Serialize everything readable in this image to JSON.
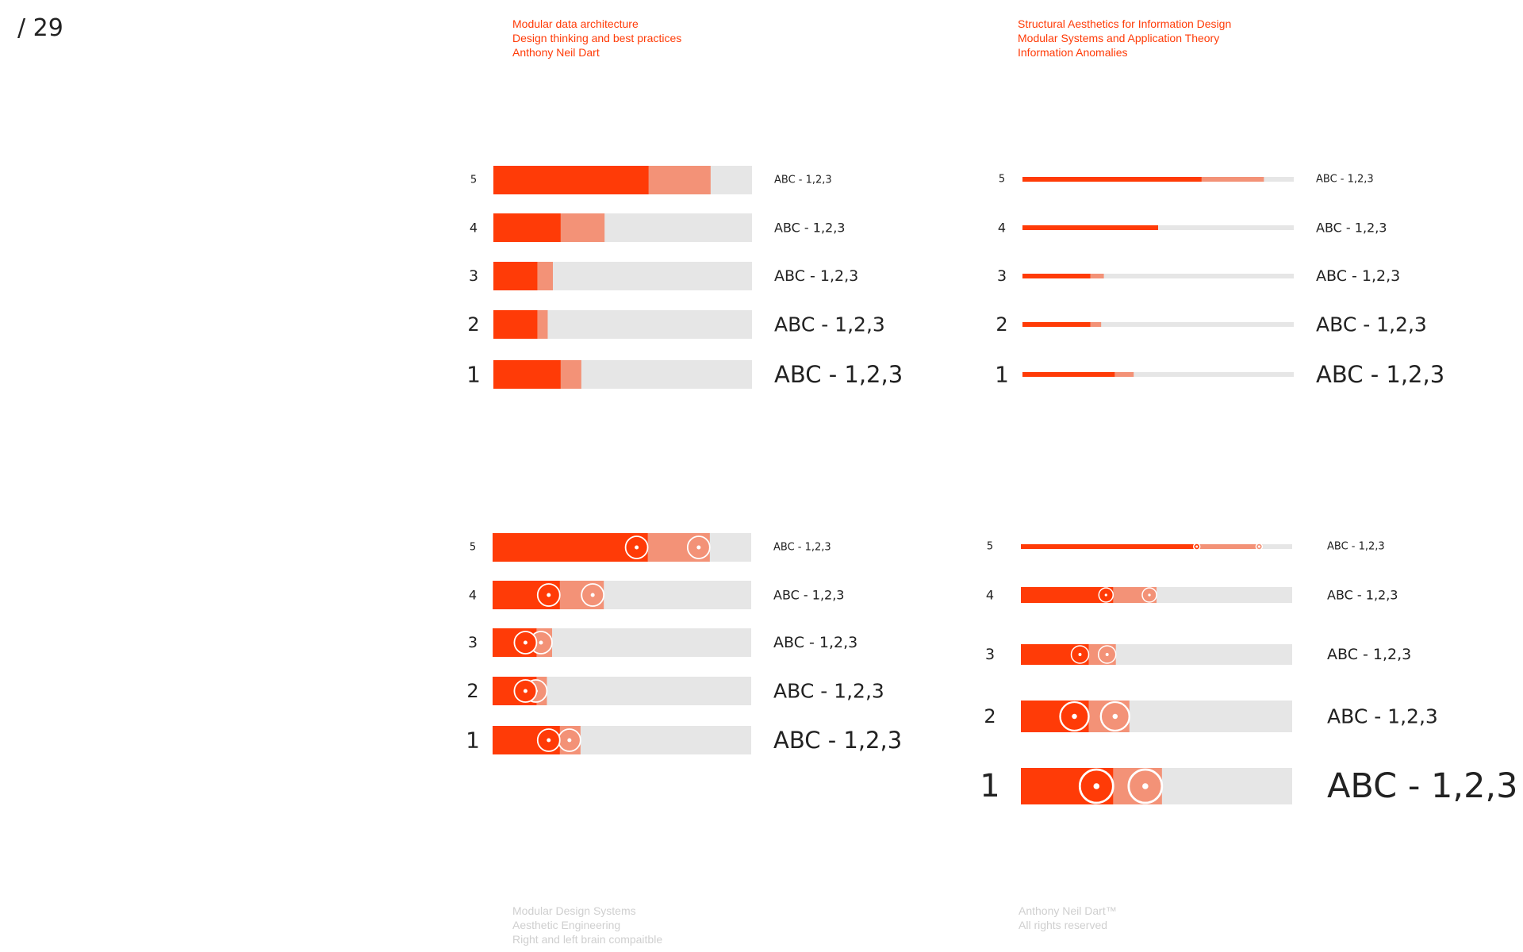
{
  "page": {
    "number": "/ 29",
    "header_left": [
      "Modular data architecture",
      "Design thinking and best practices",
      "Anthony Neil Dart"
    ],
    "header_right": [
      "Structural Aesthetics for Information Design",
      "Modular Systems and Application Theory",
      "Information Anomalies"
    ],
    "footer_left": [
      "Modular Design Systems",
      "Aesthetic Engineering",
      "Right and left brain compaitble"
    ],
    "footer_right": [
      "Anthony Neil Dart™",
      "All rights reserved"
    ]
  },
  "colors": {
    "primary": "#ff3b07",
    "secondary": "#f39277",
    "track": "#e6e6e6",
    "text": "#222222",
    "header_text": "#ff3b07",
    "footer_text": "#cfcfcf"
  },
  "chart_data": [
    {
      "type": "bar",
      "style": "thick-bar",
      "categories": [
        "5",
        "4",
        "3",
        "2",
        "1"
      ],
      "series": [
        {
          "values": [
            0.6,
            0.26,
            0.17,
            0.17,
            0.26
          ]
        },
        {
          "values": [
            0.84,
            0.43,
            0.23,
            0.21,
            0.34
          ]
        }
      ],
      "labels": [
        "ABC - 1,2,3",
        "ABC - 1,2,3",
        "ABC - 1,2,3",
        "ABC - 1,2,3",
        "ABC - 1,2,3"
      ]
    },
    {
      "type": "bar",
      "style": "thin-line",
      "categories": [
        "5",
        "4",
        "3",
        "2",
        "1"
      ],
      "series": [
        {
          "values": [
            0.66,
            0.5,
            0.25,
            0.25,
            0.34
          ]
        },
        {
          "values": [
            0.89,
            0.5,
            0.3,
            0.29,
            0.41
          ]
        }
      ],
      "labels": [
        "ABC - 1,2,3",
        "ABC - 1,2,3",
        "ABC - 1,2,3",
        "ABC - 1,2,3",
        "ABC - 1,2,3"
      ]
    },
    {
      "type": "bar",
      "style": "thick-bar-with-markers",
      "categories": [
        "5",
        "4",
        "3",
        "2",
        "1"
      ],
      "series": [
        {
          "values": [
            0.6,
            0.26,
            0.17,
            0.17,
            0.26
          ]
        },
        {
          "values": [
            0.84,
            0.43,
            0.23,
            0.21,
            0.34
          ]
        }
      ],
      "labels": [
        "ABC - 1,2,3",
        "ABC - 1,2,3",
        "ABC - 1,2,3",
        "ABC - 1,2,3",
        "ABC - 1,2,3"
      ]
    },
    {
      "type": "bar",
      "style": "growing-bar-with-markers",
      "categories": [
        "5",
        "4",
        "3",
        "2",
        "1"
      ],
      "series": [
        {
          "values": [
            0.66,
            0.34,
            0.25,
            0.25,
            0.34
          ]
        },
        {
          "values": [
            0.89,
            0.5,
            0.35,
            0.4,
            0.52
          ]
        }
      ],
      "labels": [
        "ABC - 1,2,3",
        "ABC - 1,2,3",
        "ABC - 1,2,3",
        "ABC - 1,2,3",
        "ABC - 1,2,3"
      ]
    }
  ]
}
